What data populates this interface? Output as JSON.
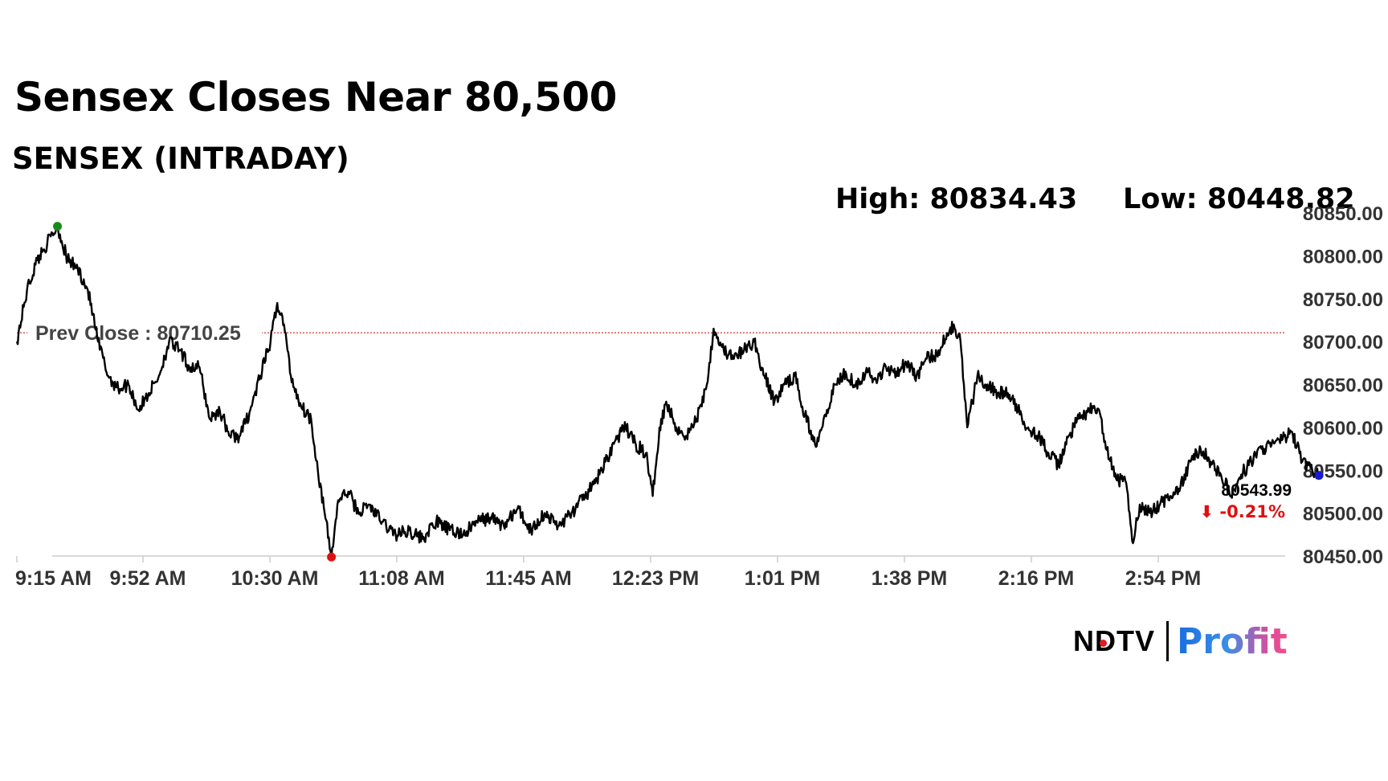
{
  "headline": "Sensex Closes Near 80,500",
  "chart_data": {
    "type": "line",
    "title": "SENSEX (INTRADAY)",
    "high_label": "High: 80834.43",
    "low_label": "Low: 80448.82",
    "high": 80834.43,
    "low": 80448.82,
    "prev_close": 80710.25,
    "prev_close_label": "Prev Close : 80710.25",
    "last_value_label": "80543.99",
    "change_label": "⬇ -0.21%",
    "ylim": [
      80450,
      80850
    ],
    "y_ticks": [
      "80850.00",
      "80800.00",
      "80750.00",
      "80700.00",
      "80650.00",
      "80600.00",
      "80550.00",
      "80500.00",
      "80450.00"
    ],
    "x_ticks": [
      "9:15 AM",
      "9:52 AM",
      "10:30 AM",
      "11:08 AM",
      "11:45 AM",
      "12:23 PM",
      "1:01 PM",
      "1:38 PM",
      "2:16 PM",
      "2:54 PM"
    ],
    "x_range": [
      "9:15 AM",
      "3:30 PM"
    ],
    "grid": false,
    "series": [
      {
        "values": [
          [
            0,
            80700
          ],
          [
            3,
            80760
          ],
          [
            6,
            80795
          ],
          [
            9,
            80815
          ],
          [
            12,
            80834.43
          ],
          [
            15,
            80795
          ],
          [
            18,
            80785
          ],
          [
            21,
            80760
          ],
          [
            24,
            80700
          ],
          [
            27,
            80660
          ],
          [
            30,
            80645
          ],
          [
            33,
            80650
          ],
          [
            36,
            80620
          ],
          [
            39,
            80640
          ],
          [
            42,
            80660
          ],
          [
            45,
            80700
          ],
          [
            48,
            80690
          ],
          [
            51,
            80670
          ],
          [
            54,
            80670
          ],
          [
            57,
            80610
          ],
          [
            60,
            80620
          ],
          [
            63,
            80590
          ],
          [
            66,
            80590
          ],
          [
            69,
            80620
          ],
          [
            72,
            80660
          ],
          [
            75,
            80700
          ],
          [
            77,
            80745
          ],
          [
            79,
            80720
          ],
          [
            81,
            80660
          ],
          [
            84,
            80625
          ],
          [
            87,
            80610
          ],
          [
            89,
            80550
          ],
          [
            91,
            80500
          ],
          [
            93,
            80448.82
          ],
          [
            95,
            80515
          ],
          [
            98,
            80525
          ],
          [
            101,
            80500
          ],
          [
            104,
            80510
          ],
          [
            108,
            80490
          ],
          [
            112,
            80475
          ],
          [
            116,
            80480
          ],
          [
            120,
            80470
          ],
          [
            124,
            80490
          ],
          [
            128,
            80480
          ],
          [
            132,
            80475
          ],
          [
            136,
            80490
          ],
          [
            140,
            80495
          ],
          [
            144,
            80485
          ],
          [
            148,
            80505
          ],
          [
            152,
            80480
          ],
          [
            156,
            80500
          ],
          [
            160,
            80485
          ],
          [
            164,
            80500
          ],
          [
            168,
            80520
          ],
          [
            171,
            80535
          ],
          [
            174,
            80560
          ],
          [
            177,
            80585
          ],
          [
            180,
            80600
          ],
          [
            183,
            80580
          ],
          [
            186,
            80570
          ],
          [
            188,
            80520
          ],
          [
            190,
            80600
          ],
          [
            192,
            80630
          ],
          [
            195,
            80600
          ],
          [
            198,
            80590
          ],
          [
            201,
            80610
          ],
          [
            204,
            80650
          ],
          [
            206,
            80715
          ],
          [
            209,
            80690
          ],
          [
            212,
            80680
          ],
          [
            215,
            80690
          ],
          [
            218,
            80700
          ],
          [
            221,
            80660
          ],
          [
            224,
            80630
          ],
          [
            227,
            80650
          ],
          [
            230,
            80660
          ],
          [
            233,
            80615
          ],
          [
            236,
            80580
          ],
          [
            239,
            80615
          ],
          [
            242,
            80650
          ],
          [
            245,
            80665
          ],
          [
            248,
            80650
          ],
          [
            251,
            80665
          ],
          [
            254,
            80655
          ],
          [
            257,
            80670
          ],
          [
            260,
            80665
          ],
          [
            263,
            80675
          ],
          [
            266,
            80660
          ],
          [
            269,
            80680
          ],
          [
            272,
            80685
          ],
          [
            275,
            80710
          ],
          [
            277,
            80720
          ],
          [
            279,
            80700
          ],
          [
            281,
            80600
          ],
          [
            284,
            80660
          ],
          [
            287,
            80650
          ],
          [
            290,
            80640
          ],
          [
            293,
            80640
          ],
          [
            296,
            80620
          ],
          [
            299,
            80600
          ],
          [
            302,
            80590
          ],
          [
            305,
            80570
          ],
          [
            308,
            80555
          ],
          [
            311,
            80590
          ],
          [
            314,
            80610
          ],
          [
            317,
            80620
          ],
          [
            320,
            80620
          ],
          [
            322,
            80575
          ],
          [
            325,
            80540
          ],
          [
            328,
            80535
          ],
          [
            330,
            80465
          ],
          [
            332,
            80510
          ],
          [
            335,
            80500
          ],
          [
            338,
            80510
          ],
          [
            341,
            80520
          ],
          [
            344,
            80530
          ],
          [
            347,
            80560
          ],
          [
            350,
            80575
          ],
          [
            353,
            80560
          ],
          [
            356,
            80545
          ],
          [
            359,
            80520
          ],
          [
            362,
            80545
          ],
          [
            365,
            80560
          ],
          [
            368,
            80575
          ],
          [
            371,
            80580
          ],
          [
            374,
            80585
          ],
          [
            377,
            80595
          ],
          [
            380,
            80560
          ],
          [
            383,
            80550
          ],
          [
            385,
            80543.99
          ]
        ]
      }
    ]
  },
  "colors": {
    "line": "#000000",
    "prev_close_line": "#c00000",
    "high_marker": "#1a8a1a",
    "low_marker": "#e01010",
    "last_marker": "#1a1ad0",
    "change_negative": "#e01010",
    "axis": "#cccccc"
  },
  "brand": {
    "ndtv": "NDTV",
    "profit": "Profit"
  }
}
